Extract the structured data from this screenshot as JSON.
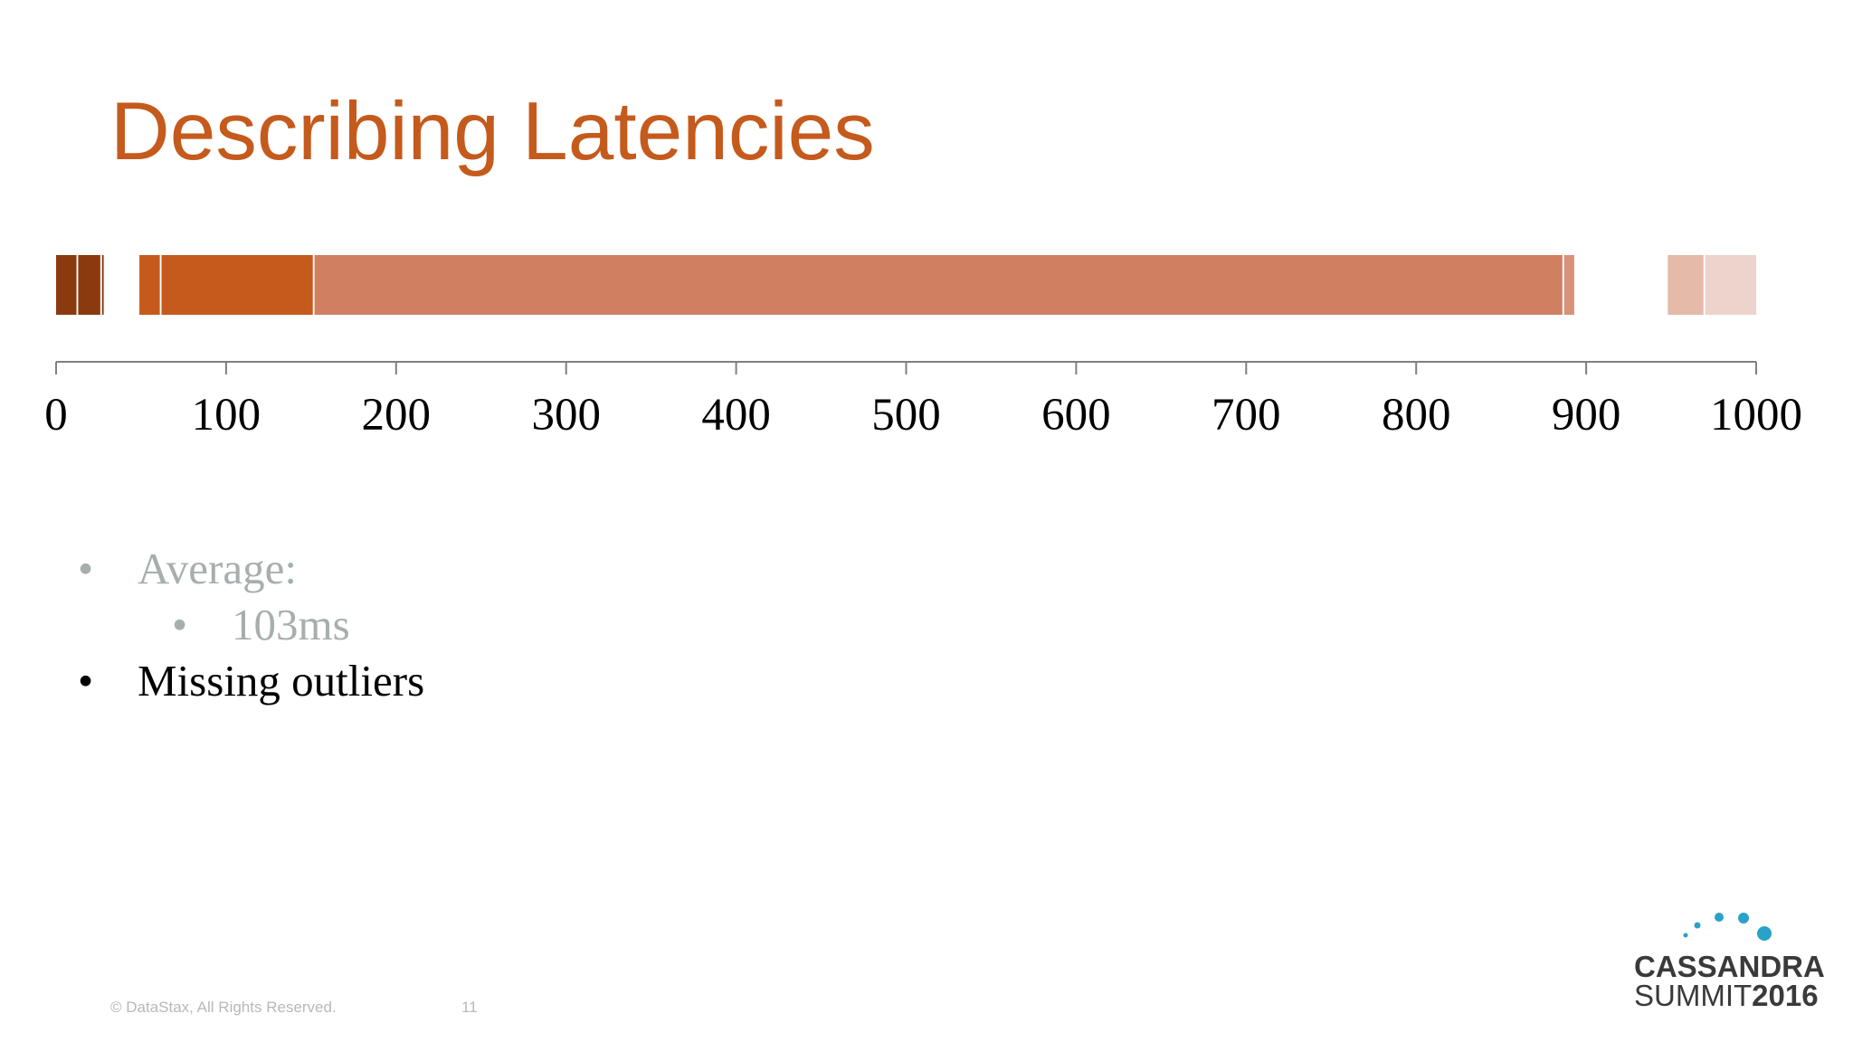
{
  "slide": {
    "title": "Describing Latencies",
    "title_color": "#c55a1d",
    "bullets": [
      {
        "level": 1,
        "text": "Average:",
        "style": "dim"
      },
      {
        "level": 2,
        "text": "103ms",
        "style": "dim"
      },
      {
        "level": 1,
        "text": "Missing outliers",
        "style": "dark"
      }
    ],
    "footer": {
      "copyright": "© DataStax, All Rights Reserved.",
      "page_number": "11"
    },
    "logo": {
      "line1": "CASSANDRA",
      "line2_prefix": "SUMMIT",
      "line2_year": "2016",
      "dot_color": "#2aa1c8"
    }
  },
  "chart_data": {
    "type": "bar",
    "orientation": "horizontal",
    "xlim": [
      0,
      1000
    ],
    "ticks": [
      0,
      100,
      200,
      300,
      400,
      500,
      600,
      700,
      800,
      900,
      1000
    ],
    "grid": false,
    "segments": [
      {
        "start": 0,
        "end": 12,
        "color": "#8b3a0f"
      },
      {
        "start": 13,
        "end": 26,
        "color": "#8b3a0f"
      },
      {
        "start": 27,
        "end": 28,
        "color": "#8b3a0f"
      },
      {
        "start": 49,
        "end": 61,
        "color": "#c55a1d"
      },
      {
        "start": 62,
        "end": 151,
        "color": "#c55a1d"
      },
      {
        "start": 152,
        "end": 886,
        "color": "#d07f60"
      },
      {
        "start": 887,
        "end": 893,
        "color": "#d9927a"
      },
      {
        "start": 948,
        "end": 969,
        "color": "#e5baa9"
      },
      {
        "start": 970,
        "end": 1000,
        "color": "#ecd3cb"
      }
    ]
  }
}
